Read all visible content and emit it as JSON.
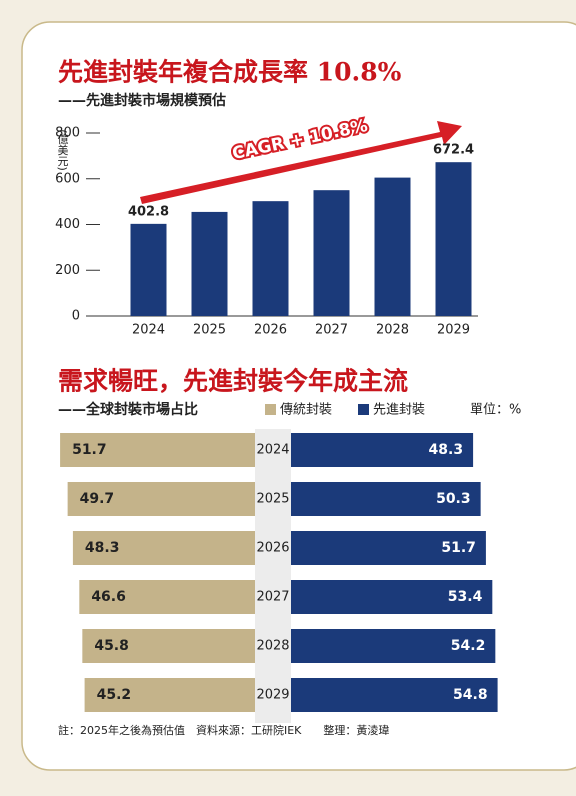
{
  "chart_data": [
    {
      "type": "bar",
      "title": "先進封裝年複合成長率 10.8%",
      "subtitle": "——先進封裝市場規模預估",
      "y_label": "(億美元)",
      "categories": [
        "2024",
        "2025",
        "2026",
        "2027",
        "2028",
        "2029"
      ],
      "values": [
        402.8,
        455,
        502,
        550,
        605,
        672.4
      ],
      "value_labels": [
        "402.8",
        null,
        null,
        null,
        null,
        "672.4"
      ],
      "color": "#1b3a7a",
      "ylim": [
        0,
        800
      ],
      "yticks": [
        0,
        200,
        400,
        600,
        800
      ],
      "annotation": "CAGR + 10.8%"
    },
    {
      "type": "diverging_bar",
      "title": "需求暢旺，先進封裝今年成主流",
      "subtitle": "——全球封裝市場占比",
      "unit": "單位：%",
      "categories": [
        "2024",
        "2025",
        "2026",
        "2027",
        "2028",
        "2029"
      ],
      "series": [
        {
          "name": "傳統封裝",
          "color": "#c4b38a",
          "values": [
            51.7,
            49.7,
            48.3,
            46.6,
            45.8,
            45.2
          ]
        },
        {
          "name": "先進封裝",
          "color": "#1b3a7a",
          "values": [
            48.3,
            50.3,
            51.7,
            53.4,
            54.2,
            54.8
          ]
        }
      ]
    }
  ],
  "note": "註：2025年之後為預估值　資料來源：工研院IEK　　整理：黃淩瑋"
}
